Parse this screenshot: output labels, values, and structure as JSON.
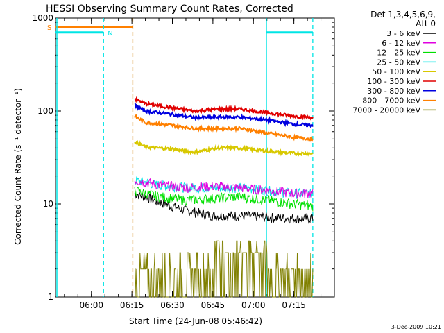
{
  "chart_data": {
    "type": "line",
    "title": "HESSI Observing Summary Count Rates, Corrected",
    "xlabel": "Start Time (24-Jun-08 05:46:42)",
    "ylabel": "Corrected Count Rate (s⁻¹ detector⁻¹)",
    "yscale": "log",
    "ylim": [
      1,
      1000
    ],
    "xlim": [
      "05:46:42",
      "07:30:00"
    ],
    "x_ticks": [
      "06:00",
      "06:15",
      "06:30",
      "06:45",
      "07:00",
      "07:15"
    ],
    "y_ticks": [
      "1",
      "10",
      "100",
      "1000"
    ],
    "legend_title": "Det 1,3,4,5,6,9,",
    "legend_subtitle": "Att 0",
    "footer": "3-Dec-2009 10:21",
    "markers": [
      {
        "label": "S",
        "color": "#ff8000"
      },
      {
        "label": "N",
        "color": "#00e5e5"
      }
    ],
    "series": [
      {
        "name": "3 - 6 keV",
        "color": "#000000",
        "x": [
          "06:16",
          "06:25",
          "06:35",
          "06:45",
          "06:55",
          "07:05",
          "07:15",
          "07:22"
        ],
        "values": [
          13,
          10.5,
          8.5,
          7.5,
          7.5,
          7.2,
          7.0,
          7.0
        ]
      },
      {
        "name": "6 - 12 keV",
        "color": "#e000e0",
        "x": [
          "06:16",
          "06:25",
          "06:35",
          "06:45",
          "06:55",
          "07:05",
          "07:15",
          "07:22"
        ],
        "values": [
          18,
          16,
          15,
          15.5,
          15,
          14,
          13,
          13
        ]
      },
      {
        "name": "12 - 25 keV",
        "color": "#00e000",
        "x": [
          "06:16",
          "06:25",
          "06:35",
          "06:45",
          "06:55",
          "07:05",
          "07:15",
          "07:22"
        ],
        "values": [
          14,
          12,
          11,
          11.5,
          12,
          11,
          10,
          9.5
        ]
      },
      {
        "name": "25 - 50 keV",
        "color": "#00e5e5",
        "x": [
          "06:16",
          "06:25",
          "06:35",
          "06:45",
          "06:55",
          "07:05",
          "07:15",
          "07:22"
        ],
        "values": [
          18,
          16,
          15,
          15,
          15,
          14,
          13,
          13
        ]
      },
      {
        "name": "50 - 100 keV",
        "color": "#d8c800",
        "x": [
          "06:16",
          "06:20",
          "06:30",
          "06:38",
          "06:47",
          "06:55",
          "07:05",
          "07:15",
          "07:22"
        ],
        "values": [
          47,
          41,
          39,
          36,
          40,
          40,
          37,
          35,
          35
        ]
      },
      {
        "name": "100 - 300 keV",
        "color": "#e00000",
        "x": [
          "06:16",
          "06:20",
          "06:30",
          "06:38",
          "06:47",
          "06:55",
          "07:05",
          "07:15",
          "07:22"
        ],
        "values": [
          135,
          120,
          108,
          100,
          105,
          105,
          96,
          88,
          85
        ]
      },
      {
        "name": "300 - 800 keV",
        "color": "#0000e0",
        "x": [
          "06:16",
          "06:20",
          "06:30",
          "06:38",
          "06:47",
          "06:55",
          "07:05",
          "07:15",
          "07:22"
        ],
        "values": [
          115,
          100,
          92,
          85,
          86,
          86,
          80,
          72,
          70
        ]
      },
      {
        "name": "800 - 7000 keV",
        "color": "#ff8000",
        "x": [
          "06:16",
          "06:20",
          "06:30",
          "06:38",
          "06:47",
          "06:55",
          "07:05",
          "07:15",
          "07:22"
        ],
        "values": [
          88,
          75,
          70,
          65,
          65,
          65,
          58,
          52,
          50
        ]
      },
      {
        "name": "7000 - 20000 keV",
        "color": "#808000",
        "x": [
          "06:16",
          "06:30",
          "06:45",
          "06:55",
          "07:05",
          "07:15",
          "07:22"
        ],
        "values": [
          2,
          2,
          3,
          3,
          2,
          2,
          2
        ]
      }
    ],
    "background_segments": [
      {
        "color": "#00e5e5",
        "x": [
          "05:46:42",
          "06:04:30"
        ],
        "value": 700
      },
      {
        "color": "#ff8000",
        "x": [
          "05:46:42",
          "06:15:20"
        ],
        "value": 800
      },
      {
        "color": "#00e5e5",
        "x": [
          "07:04:50",
          "07:22:00"
        ],
        "value": 700
      }
    ],
    "vertical_lines": [
      {
        "x": "06:04:30",
        "color": "#00e5e5",
        "style": "dashed"
      },
      {
        "x": "06:15:20",
        "color": "#d08000",
        "style": "dashed"
      },
      {
        "x": "07:04:50",
        "color": "#00e5e5",
        "style": "solid"
      },
      {
        "x": "07:22:00",
        "color": "#00e5e5",
        "style": "dashed"
      }
    ]
  }
}
